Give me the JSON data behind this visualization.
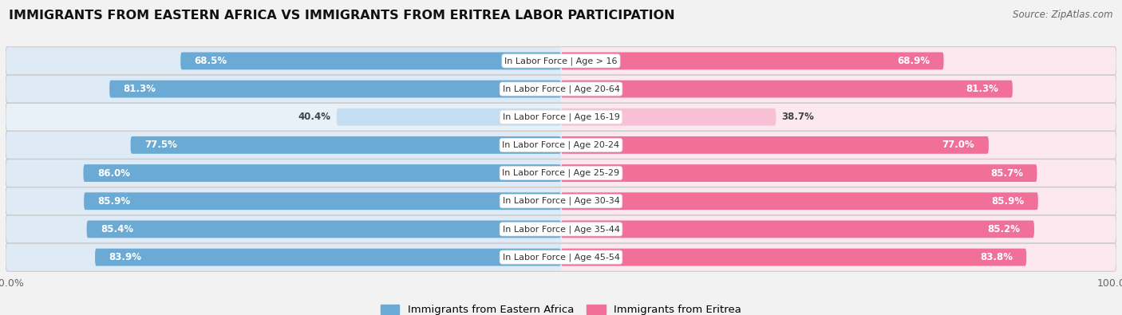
{
  "title": "IMMIGRANTS FROM EASTERN AFRICA VS IMMIGRANTS FROM ERITREA LABOR PARTICIPATION",
  "source": "Source: ZipAtlas.com",
  "categories": [
    "In Labor Force | Age > 16",
    "In Labor Force | Age 20-64",
    "In Labor Force | Age 16-19",
    "In Labor Force | Age 20-24",
    "In Labor Force | Age 25-29",
    "In Labor Force | Age 30-34",
    "In Labor Force | Age 35-44",
    "In Labor Force | Age 45-54"
  ],
  "eastern_africa": [
    68.5,
    81.3,
    40.4,
    77.5,
    86.0,
    85.9,
    85.4,
    83.9
  ],
  "eritrea": [
    68.9,
    81.3,
    38.7,
    77.0,
    85.7,
    85.9,
    85.2,
    83.8
  ],
  "ea_color": "#6aaad4",
  "er_color": "#f0709a",
  "ea_color_light": "#c5ddf0",
  "er_color_light": "#f8c0d4",
  "row_bg": "#e8e8e8",
  "row_left_bg": "#deeaf5",
  "row_right_bg": "#fce8ef",
  "white": "#ffffff",
  "bg_color": "#f2f2f2",
  "legend_ea": "Immigrants from Eastern Africa",
  "legend_er": "Immigrants from Eritrea",
  "bar_height": 0.62,
  "max_val": 100.0,
  "label_fontsize": 8.5,
  "cat_fontsize": 8.0,
  "title_fontsize": 11.5
}
